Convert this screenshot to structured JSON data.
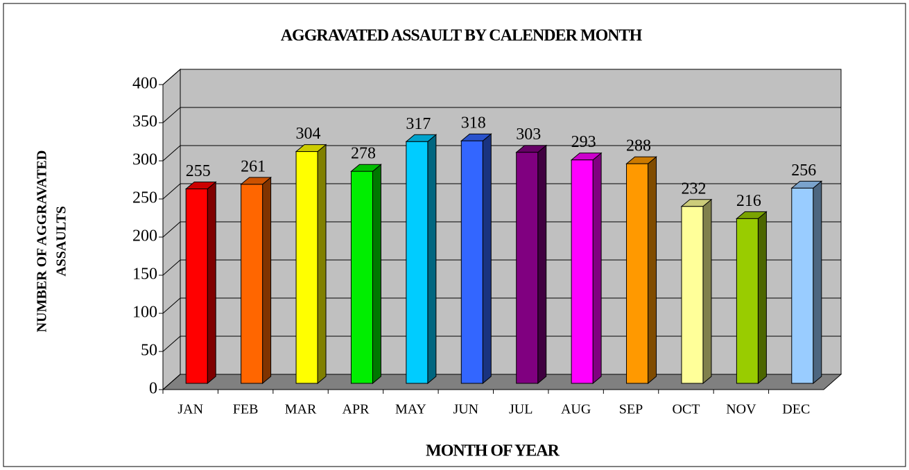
{
  "chart_data": {
    "type": "bar3d",
    "title": "AGGRAVATED ASSAULT BY CALENDER MONTH",
    "x_label": "MONTH OF YEAR",
    "y_label": [
      "NUMBER OF AGGRAVATED",
      "ASSAULTS"
    ],
    "categories": [
      "JAN",
      "FEB",
      "MAR",
      "APR",
      "MAY",
      "JUN",
      "JUL",
      "AUG",
      "SEP",
      "OCT",
      "NOV",
      "DEC"
    ],
    "values": [
      255,
      261,
      304,
      278,
      317,
      318,
      303,
      293,
      288,
      232,
      216,
      256
    ],
    "colors": [
      "#ff0000",
      "#ff6600",
      "#ffff00",
      "#00ee00",
      "#00ccff",
      "#3366ff",
      "#800080",
      "#ff00ff",
      "#ff9900",
      "#ffff99",
      "#99cc00",
      "#99ccff"
    ],
    "ylim": [
      0,
      400
    ],
    "yticks": [
      0,
      50,
      100,
      150,
      200,
      250,
      300,
      350,
      400
    ],
    "grid": true
  }
}
